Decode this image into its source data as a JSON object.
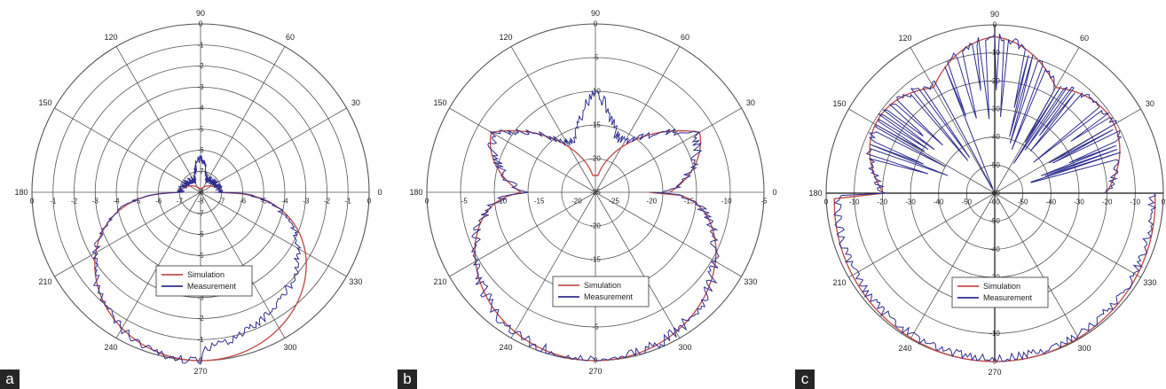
{
  "figure": {
    "legend": [
      "Simulation",
      "Measurement"
    ],
    "colors": {
      "simulation": "#c0504d",
      "measurement": "#2e2e8f",
      "grid": "#555555"
    }
  },
  "chart_data": [
    {
      "type": "line",
      "subtype": "polar",
      "panel_label": "a",
      "angle_labels": [
        "90",
        "60",
        "30",
        "0",
        "330",
        "300",
        "270",
        "240",
        "210",
        "180",
        "150",
        "120"
      ],
      "radial_ticks_upper": [
        "-8",
        "-7",
        "-6",
        "-5",
        "-4",
        "-3",
        "-2",
        "-1",
        "0"
      ],
      "radial_ticks_horizontal": [
        "0",
        "-1",
        "-2",
        "-3",
        "-4",
        "-5",
        "-6",
        "-7",
        "-8",
        "-7",
        "-6",
        "-5",
        "-4",
        "-3",
        "-2",
        "-1",
        "0"
      ],
      "radial_ticks_lower": [
        "-7",
        "-6",
        "-5",
        "-4",
        "-3",
        "-2",
        "-1",
        "0"
      ],
      "rlim": [
        -8,
        0
      ],
      "rings": 8,
      "legend_position": "lower-center",
      "series": [
        {
          "name": "Simulation",
          "pattern": "a_sim"
        },
        {
          "name": "Measurement",
          "pattern": "a_meas"
        }
      ]
    },
    {
      "type": "line",
      "subtype": "polar",
      "panel_label": "b",
      "angle_labels": [
        "90",
        "60",
        "30",
        "0",
        "330",
        "300",
        "270",
        "240",
        "210",
        "180",
        "150",
        "120"
      ],
      "radial_ticks_upper": [
        "-25",
        "-20",
        "-15",
        "-10",
        "-5",
        "0"
      ],
      "radial_ticks_horizontal": [
        "0",
        "-5",
        "-10",
        "-15",
        "-20",
        "-25",
        "-20",
        "-15",
        "-10",
        "-5"
      ],
      "radial_ticks_lower": [
        "-20",
        "-15",
        "-10",
        "-5",
        "0"
      ],
      "rlim": [
        -25,
        0
      ],
      "rings": 5,
      "legend_position": "lower-center",
      "series": [
        {
          "name": "Simulation",
          "pattern": "b_sim"
        },
        {
          "name": "Measurement",
          "pattern": "b_meas"
        }
      ]
    },
    {
      "type": "line",
      "subtype": "polar",
      "panel_label": "c",
      "angle_labels": [
        "90",
        "60",
        "30",
        "0",
        "330",
        "300",
        "270",
        "240",
        "210",
        "180",
        "150",
        "120"
      ],
      "radial_ticks_upper": [
        "-60",
        "-50",
        "-40",
        "-30",
        "-20",
        "-10",
        "0"
      ],
      "radial_ticks_horizontal": [
        "0",
        "-10",
        "-20",
        "-30",
        "-40",
        "-50",
        "-60",
        "-50",
        "-40",
        "-30",
        "-20",
        "-10",
        "0"
      ],
      "radial_ticks_lower": [
        "-50",
        "-40",
        "-30",
        "-20",
        "-10",
        "0"
      ],
      "rlim": [
        -60,
        0
      ],
      "rings": 6,
      "legend_position": "lower-center",
      "series": [
        {
          "name": "Simulation",
          "pattern": "c_sim"
        },
        {
          "name": "Measurement",
          "pattern": "c_meas"
        }
      ]
    }
  ]
}
